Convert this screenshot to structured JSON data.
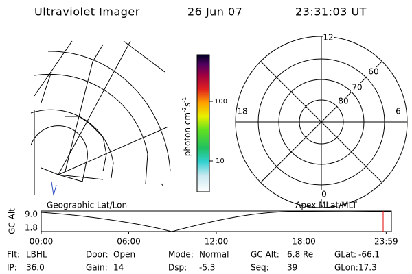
{
  "header": {
    "title": "Ultraviolet Imager",
    "date": "26 Jun 07",
    "time": "23:31:03 UT"
  },
  "colorbar": {
    "label": [
      "photon cm",
      "-2",
      "s",
      "-1"
    ],
    "ticks": [
      "100",
      "10"
    ]
  },
  "polar": {
    "labels": [
      "12",
      "60",
      "70",
      "80",
      "18",
      "6",
      "0"
    ]
  },
  "map_label": "Geographic Lat/Lon",
  "polar_label": "Apex MLat/MLT",
  "altitude_plot": {
    "ylabel": "GC Alt",
    "yticks": [
      "9.0",
      "1.8"
    ],
    "xticks": [
      "00:00",
      "06:00",
      "12:00",
      "18:00",
      "23:59"
    ]
  },
  "status": [
    [
      {
        "label": "Flt:",
        "value": "LBHL"
      },
      {
        "label": "Door:",
        "value": "Open"
      },
      {
        "label": "Mode:",
        "value": "Normal"
      },
      {
        "label": "GC Alt:",
        "value": "6.8 Re"
      },
      {
        "label": "GLat:",
        "value": "-66.1"
      }
    ],
    [
      {
        "label": "IP:",
        "value": "36.0"
      },
      {
        "label": "Gain:",
        "value": "14"
      },
      {
        "label": "Dsp:",
        "value": "-5.3"
      },
      {
        "label": "Seq:",
        "value": "39"
      },
      {
        "label": "GLon:",
        "value": "17.3"
      }
    ]
  ]
}
